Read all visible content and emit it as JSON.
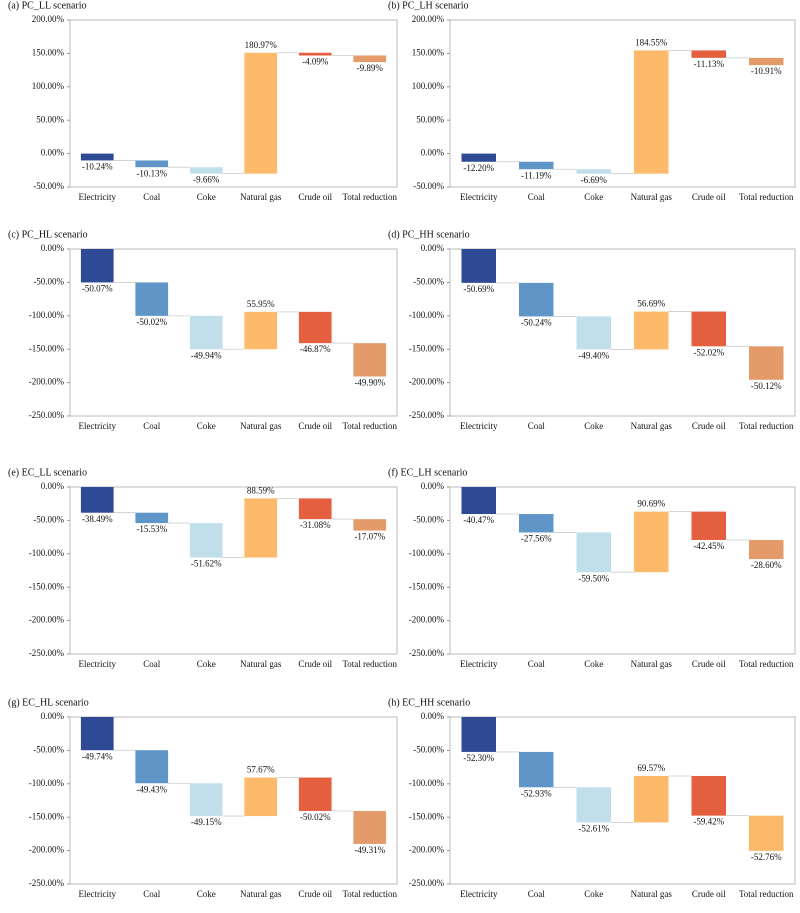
{
  "chart_data": [
    {
      "type": "waterfall",
      "title": "(a) PC_LL scenario",
      "categories": [
        "Electricity",
        "Coal",
        "Coke",
        "Natural gas",
        "Crude oil",
        "Total reduction"
      ],
      "values": [
        -10.24,
        -10.13,
        -9.66,
        180.97,
        -4.09,
        -9.89
      ],
      "value_labels": [
        "-10.24%",
        "-10.13%",
        "-9.66%",
        "180.97%",
        "-4.09%",
        "-9.89%"
      ],
      "colors": [
        "#2e4a94",
        "#5f95c7",
        "#c1dfeb",
        "#fdba6b",
        "#e35f3d",
        "#e59a6a"
      ],
      "ylim": [
        -50,
        200
      ],
      "yticks": [
        {
          "value": 200,
          "label": "200.00%"
        },
        {
          "value": 150,
          "label": "150.00%"
        },
        {
          "value": 100,
          "label": "100.00%"
        },
        {
          "value": 50,
          "label": "50.00%"
        },
        {
          "value": 0,
          "label": "0.00%"
        },
        {
          "value": -50,
          "label": "-50.00%"
        }
      ]
    },
    {
      "type": "waterfall",
      "title": "(b) PC_LH scenario",
      "categories": [
        "Electricity",
        "Coal",
        "Coke",
        "Natural gas",
        "Crude oil",
        "Total reduction"
      ],
      "values": [
        -12.2,
        -11.19,
        -6.69,
        184.55,
        -11.13,
        -10.91
      ],
      "value_labels": [
        "-12.20%",
        "-11.19%",
        "-6.69%",
        "184.55%",
        "-11.13%",
        "-10.91%"
      ],
      "colors": [
        "#2e4a94",
        "#5f95c7",
        "#c1dfeb",
        "#fdba6b",
        "#e35f3d",
        "#e59a6a"
      ],
      "ylim": [
        -50,
        200
      ],
      "yticks": [
        {
          "value": 200,
          "label": "200.00%"
        },
        {
          "value": 150,
          "label": "150.00%"
        },
        {
          "value": 100,
          "label": "100.00%"
        },
        {
          "value": 50,
          "label": "50.00%"
        },
        {
          "value": 0,
          "label": "0.00%"
        },
        {
          "value": -50,
          "label": "-50.00%"
        }
      ]
    },
    {
      "type": "waterfall",
      "title": "(c) PC_HL scenario",
      "categories": [
        "Electricity",
        "Coal",
        "Coke",
        "Natural gas",
        "Crude oil",
        "Total reduction"
      ],
      "values": [
        -50.07,
        -50.02,
        -49.94,
        55.95,
        -46.87,
        -49.9
      ],
      "value_labels": [
        "-50.07%",
        "-50.02%",
        "-49.94%",
        "55.95%",
        "-46.87%",
        "-49.90%"
      ],
      "colors": [
        "#2e4a94",
        "#5f95c7",
        "#c1dfeb",
        "#fdba6b",
        "#e35f3d",
        "#e59a6a"
      ],
      "ylim": [
        -250,
        0
      ],
      "yticks": [
        {
          "value": 0,
          "label": "0.00%"
        },
        {
          "value": -50,
          "label": "-50.00%"
        },
        {
          "value": -100,
          "label": "-100.00%"
        },
        {
          "value": -150,
          "label": "-150.00%"
        },
        {
          "value": -200,
          "label": "-200.00%"
        },
        {
          "value": -250,
          "label": "-250.00%"
        }
      ]
    },
    {
      "type": "waterfall",
      "title": "(d) PC_HH scenario",
      "categories": [
        "Electricity",
        "Coal",
        "Coke",
        "Natural gas",
        "Crude oil",
        "Total reduction"
      ],
      "values": [
        -50.69,
        -50.24,
        -49.4,
        56.69,
        -52.02,
        -50.12
      ],
      "value_labels": [
        "-50.69%",
        "-50.24%",
        "-49.40%",
        "56.69%",
        "-52.02%",
        "-50.12%"
      ],
      "colors": [
        "#2e4a94",
        "#5f95c7",
        "#c1dfeb",
        "#fdba6b",
        "#e35f3d",
        "#e59a6a"
      ],
      "ylim": [
        -250,
        0
      ],
      "yticks": [
        {
          "value": 0,
          "label": "0.00%"
        },
        {
          "value": -50,
          "label": "-50.00%"
        },
        {
          "value": -100,
          "label": "-100.00%"
        },
        {
          "value": -150,
          "label": "-150.00%"
        },
        {
          "value": -200,
          "label": "-200.00%"
        },
        {
          "value": -250,
          "label": "-250.00%"
        }
      ]
    },
    {
      "type": "waterfall",
      "title": "(e) EC_LL scenario",
      "categories": [
        "Electricity",
        "Coal",
        "Coke",
        "Natural gas",
        "Crude oil",
        "Total reduction"
      ],
      "values": [
        -38.49,
        -15.53,
        -51.62,
        88.59,
        -31.08,
        -17.07
      ],
      "value_labels": [
        "-38.49%",
        "-15.53%",
        "-51.62%",
        "88.59%",
        "-31.08%",
        "-17.07%"
      ],
      "colors": [
        "#2e4a94",
        "#5f95c7",
        "#c1dfeb",
        "#fdba6b",
        "#e35f3d",
        "#e59a6a"
      ],
      "ylim": [
        -250,
        0
      ],
      "yticks": [
        {
          "value": 0,
          "label": "0.00%"
        },
        {
          "value": -50,
          "label": "-50.00%"
        },
        {
          "value": -100,
          "label": "-100.00%"
        },
        {
          "value": -150,
          "label": "-150.00%"
        },
        {
          "value": -200,
          "label": "-200.00%"
        },
        {
          "value": -250,
          "label": "-250.00%"
        }
      ]
    },
    {
      "type": "waterfall",
      "title": "(f) EC_LH scenario",
      "categories": [
        "Electricity",
        "Coal",
        "Coke",
        "Natural gas",
        "Crude oil",
        "Total reduction"
      ],
      "values": [
        -40.47,
        -27.56,
        -59.5,
        90.69,
        -42.45,
        -28.6
      ],
      "value_labels": [
        "-40.47%",
        "-27.56%",
        "-59.50%",
        "90.69%",
        "-42.45%",
        "-28.60%"
      ],
      "colors": [
        "#2e4a94",
        "#5f95c7",
        "#c1dfeb",
        "#fdba6b",
        "#e35f3d",
        "#e59a6a"
      ],
      "ylim": [
        -250,
        0
      ],
      "yticks": [
        {
          "value": 0,
          "label": "0.00%"
        },
        {
          "value": -50,
          "label": "-50.00%"
        },
        {
          "value": -100,
          "label": "-100.00%"
        },
        {
          "value": -150,
          "label": "-150.00%"
        },
        {
          "value": -200,
          "label": "-200.00%"
        },
        {
          "value": -250,
          "label": "-250.00%"
        }
      ]
    },
    {
      "type": "waterfall",
      "title": "(g) EC_HL scenario",
      "categories": [
        "Electricity",
        "Coal",
        "Coke",
        "Natural gas",
        "Crude oil",
        "Total reduction"
      ],
      "values": [
        -49.74,
        -49.43,
        -49.15,
        57.67,
        -50.02,
        -49.31
      ],
      "value_labels": [
        "-49.74%",
        "-49.43%",
        "-49.15%",
        "57.67%",
        "-50.02%",
        "-49.31%"
      ],
      "colors": [
        "#2e4a94",
        "#5f95c7",
        "#c1dfeb",
        "#fdba6b",
        "#e35f3d",
        "#e59a6a"
      ],
      "ylim": [
        -250,
        0
      ],
      "yticks": [
        {
          "value": 0,
          "label": "0.00%"
        },
        {
          "value": -50,
          "label": "-50.00%"
        },
        {
          "value": -100,
          "label": "-100.00%"
        },
        {
          "value": -150,
          "label": "-150.00%"
        },
        {
          "value": -200,
          "label": "-200.00%"
        },
        {
          "value": -250,
          "label": "-250.00%"
        }
      ]
    },
    {
      "type": "waterfall",
      "title": "(h) EC_HH scenario",
      "categories": [
        "Electricity",
        "Coal",
        "Coke",
        "Natural gas",
        "Crude oil",
        "Total reduction"
      ],
      "values": [
        -52.3,
        -52.93,
        -52.61,
        69.57,
        -59.42,
        -52.76
      ],
      "value_labels": [
        "-52.30%",
        "-52.93%",
        "-52.61%",
        "69.57%",
        "-59.42%",
        "-52.76%"
      ],
      "colors": [
        "#2e4a94",
        "#5f95c7",
        "#c1dfeb",
        "#fdba6b",
        "#e35f3d",
        "#fdb96a"
      ],
      "ylim": [
        -250,
        0
      ],
      "yticks": [
        {
          "value": 0,
          "label": "0.00%"
        },
        {
          "value": -50,
          "label": "-50.00%"
        },
        {
          "value": -100,
          "label": "-100.00%"
        },
        {
          "value": -150,
          "label": "-150.00%"
        },
        {
          "value": -200,
          "label": "-200.00%"
        },
        {
          "value": -250,
          "label": "-250.00%"
        }
      ]
    }
  ]
}
